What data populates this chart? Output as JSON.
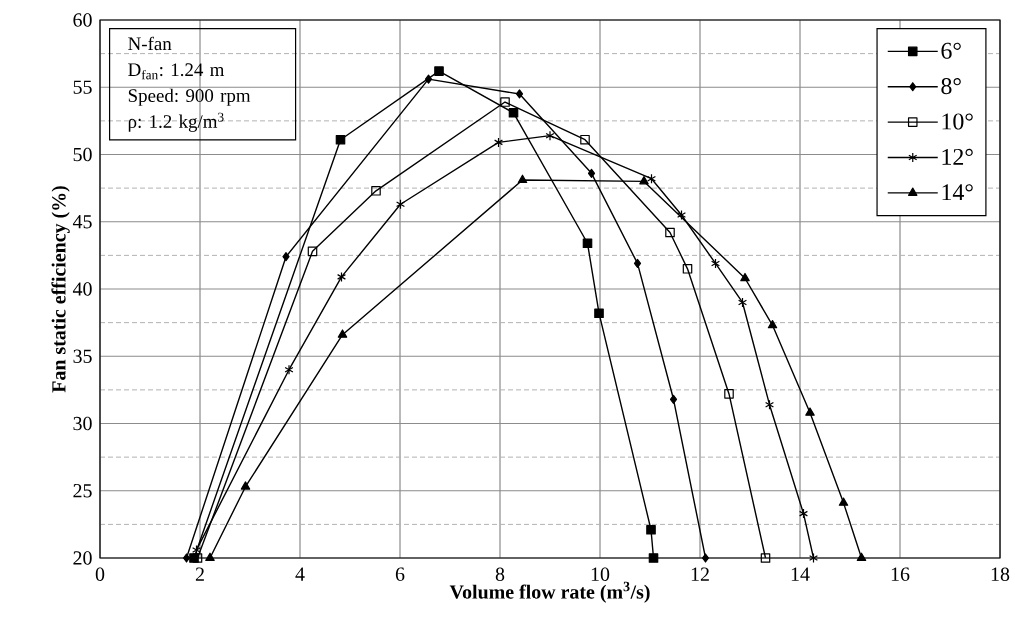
{
  "chart_data": {
    "type": "line",
    "xlabel": "Volume flow rate (m$^{3}$/s)",
    "ylabel": "Fan static efficiency (%)",
    "annotations": [
      "N-fan",
      "D$_{fan}$: 1.24 m",
      "Speed: 900 rpm",
      "ρ: 1.2 kg/m$^{3}$"
    ],
    "xlim": [
      0,
      18
    ],
    "ylim": [
      20,
      60
    ],
    "xticks": [
      0,
      2,
      4,
      6,
      8,
      10,
      12,
      14,
      16,
      18
    ],
    "yticks": [
      20,
      {
        "value": 22.5,
        "label": null
      },
      25,
      {
        "value": 27.5,
        "label": null
      },
      30,
      {
        "value": 32.5,
        "label": null
      },
      35,
      {
        "value": 37.5,
        "label": null
      },
      40,
      {
        "value": 42.5,
        "label": null
      },
      45,
      {
        "value": 47.5,
        "label": null
      },
      50,
      {
        "value": 52.5,
        "label": null
      },
      55,
      {
        "value": 57.5,
        "label": null
      },
      60
    ],
    "grid": true,
    "legend": "top right",
    "line_style": "solid",
    "series": [
      {
        "name": "6°",
        "color": "#000000",
        "marker": "square",
        "x": [
          1.88,
          4.81,
          6.78,
          8.27,
          9.75,
          9.98,
          11.02,
          11.07
        ],
        "values": [
          20,
          51.1,
          56.2,
          53.1,
          43.4,
          38.2,
          22.1,
          20
        ]
      },
      {
        "name": "8°",
        "color": "#000000",
        "marker": "diamond",
        "x": [
          1.73,
          3.72,
          6.57,
          8.39,
          9.83,
          10.75,
          11.47,
          12.11
        ],
        "values": [
          20,
          42.4,
          55.6,
          54.5,
          48.6,
          41.9,
          31.8,
          20
        ]
      },
      {
        "name": "10°",
        "color": "#000000",
        "marker": "square",
        "x": [
          1.95,
          4.25,
          5.52,
          8.1,
          9.7,
          11.4,
          11.75,
          12.58,
          13.31
        ],
        "values": [
          20,
          42.8,
          47.3,
          53.9,
          51.1,
          44.2,
          41.5,
          32.2,
          20
        ]
      },
      {
        "name": "12°",
        "color": "#000000",
        "marker": "cross",
        "x": [
          1.93,
          3.78,
          4.83,
          6.01,
          7.97,
          9.0,
          11.03,
          11.63,
          12.31,
          12.85,
          13.39,
          14.07,
          14.27
        ],
        "values": [
          20.6,
          34.0,
          40.9,
          46.3,
          50.9,
          51.4,
          48.2,
          45.5,
          41.9,
          39.0,
          31.4,
          23.3,
          20
        ]
      },
      {
        "name": "14°",
        "color": "#000000",
        "marker": "triangle",
        "x": [
          2.2,
          2.91,
          4.85,
          8.45,
          10.88,
          12.9,
          13.45,
          14.2,
          14.87,
          15.23
        ],
        "values": [
          20,
          25.3,
          36.6,
          48.1,
          48.0,
          40.8,
          37.3,
          30.8,
          24.1,
          20
        ]
      }
    ]
  }
}
